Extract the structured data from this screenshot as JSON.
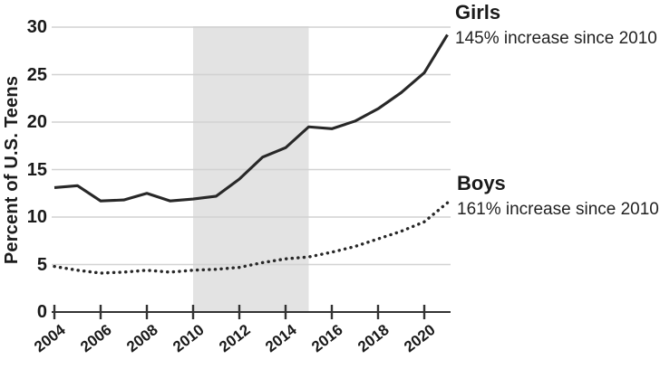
{
  "chart_data": {
    "type": "line",
    "title": "",
    "ylabel": "Percent of U.S. Teens",
    "xlabel": "",
    "x": [
      2004,
      2005,
      2006,
      2007,
      2008,
      2009,
      2010,
      2011,
      2012,
      2013,
      2014,
      2015,
      2016,
      2017,
      2018,
      2019,
      2020,
      2021
    ],
    "series": [
      {
        "name": "Girls",
        "annotation": "145% increase since 2010",
        "line_style": "solid",
        "values": [
          13.1,
          13.3,
          11.7,
          11.8,
          12.5,
          11.7,
          11.9,
          12.2,
          14.0,
          16.3,
          17.3,
          19.5,
          19.3,
          20.1,
          21.4,
          23.1,
          25.2,
          29.2
        ]
      },
      {
        "name": "Boys",
        "annotation": "161% increase since 2010",
        "line_style": "dotted",
        "values": [
          4.8,
          4.4,
          4.1,
          4.2,
          4.4,
          4.2,
          4.4,
          4.5,
          4.7,
          5.2,
          5.6,
          5.8,
          6.3,
          6.9,
          7.7,
          8.5,
          9.5,
          11.5
        ]
      }
    ],
    "xticks": [
      "2004",
      "2006",
      "2008",
      "2010",
      "2012",
      "2014",
      "2016",
      "2018",
      "2020"
    ],
    "yticks": [
      0,
      5,
      10,
      15,
      20,
      25,
      30
    ],
    "ylim": [
      0,
      30
    ],
    "xlim": [
      2004,
      2021
    ],
    "grid": true,
    "shaded_region": {
      "from": 2010,
      "to": 2015
    },
    "legend_position": "right annotations"
  },
  "colors": {
    "line": "#282828",
    "band": "#e3e3e3",
    "grid": "#d2d2d2",
    "axis": "#333333",
    "text": "#1a1a1a",
    "background": "#ffffff"
  }
}
